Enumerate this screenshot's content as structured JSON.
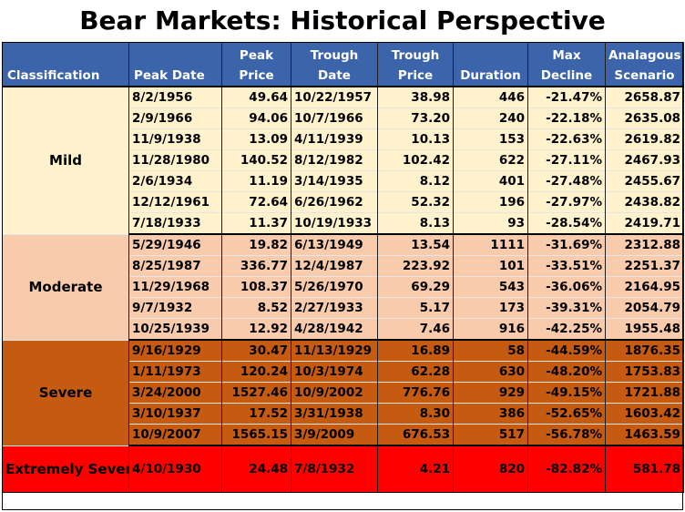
{
  "title": "Bear Markets:  Historical Perspective",
  "columns": [
    "Classification",
    "Peak Date",
    "Peak Price",
    "Trough Date",
    "Trough Price",
    "Duration",
    "Max Decline",
    "Analagous Scenario"
  ],
  "column_lines": [
    [
      "Classification"
    ],
    [
      "Peak Date"
    ],
    [
      "Peak",
      "Price"
    ],
    [
      "Trough",
      "Date"
    ],
    [
      "Trough",
      "Price"
    ],
    [
      "Duration"
    ],
    [
      "Max",
      "Decline"
    ],
    [
      "Analagous",
      "Scenario"
    ]
  ],
  "colors": {
    "header": "#3b64aa",
    "Mild": "#fff2cc",
    "Moderate": "#f8cbad",
    "Severe": "#c55a11",
    "Extremely Severe": "#ff0000"
  },
  "groups": [
    {
      "classification": "Mild",
      "style": "mild",
      "rows": [
        {
          "peak_date": "8/2/1956",
          "peak_price": "49.64",
          "trough_date": "10/22/1957",
          "trough_price": "38.98",
          "duration": "446",
          "max_decline": "-21.47%",
          "scenario": "2658.87"
        },
        {
          "peak_date": "2/9/1966",
          "peak_price": "94.06",
          "trough_date": "10/7/1966",
          "trough_price": "73.20",
          "duration": "240",
          "max_decline": "-22.18%",
          "scenario": "2635.08"
        },
        {
          "peak_date": "11/9/1938",
          "peak_price": "13.09",
          "trough_date": "4/11/1939",
          "trough_price": "10.13",
          "duration": "153",
          "max_decline": "-22.63%",
          "scenario": "2619.82"
        },
        {
          "peak_date": "11/28/1980",
          "peak_price": "140.52",
          "trough_date": "8/12/1982",
          "trough_price": "102.42",
          "duration": "622",
          "max_decline": "-27.11%",
          "scenario": "2467.93"
        },
        {
          "peak_date": "2/6/1934",
          "peak_price": "11.19",
          "trough_date": "3/14/1935",
          "trough_price": "8.12",
          "duration": "401",
          "max_decline": "-27.48%",
          "scenario": "2455.67"
        },
        {
          "peak_date": "12/12/1961",
          "peak_price": "72.64",
          "trough_date": "6/26/1962",
          "trough_price": "52.32",
          "duration": "196",
          "max_decline": "-27.97%",
          "scenario": "2438.82"
        },
        {
          "peak_date": "7/18/1933",
          "peak_price": "11.37",
          "trough_date": "10/19/1933",
          "trough_price": "8.13",
          "duration": "93",
          "max_decline": "-28.54%",
          "scenario": "2419.71"
        }
      ]
    },
    {
      "classification": "Moderate",
      "style": "moderate",
      "rows": [
        {
          "peak_date": "5/29/1946",
          "peak_price": "19.82",
          "trough_date": "6/13/1949",
          "trough_price": "13.54",
          "duration": "1111",
          "max_decline": "-31.69%",
          "scenario": "2312.88"
        },
        {
          "peak_date": "8/25/1987",
          "peak_price": "336.77",
          "trough_date": "12/4/1987",
          "trough_price": "223.92",
          "duration": "101",
          "max_decline": "-33.51%",
          "scenario": "2251.37"
        },
        {
          "peak_date": "11/29/1968",
          "peak_price": "108.37",
          "trough_date": "5/26/1970",
          "trough_price": "69.29",
          "duration": "543",
          "max_decline": "-36.06%",
          "scenario": "2164.95"
        },
        {
          "peak_date": "9/7/1932",
          "peak_price": "8.52",
          "trough_date": "2/27/1933",
          "trough_price": "5.17",
          "duration": "173",
          "max_decline": "-39.31%",
          "scenario": "2054.79"
        },
        {
          "peak_date": "10/25/1939",
          "peak_price": "12.92",
          "trough_date": "4/28/1942",
          "trough_price": "7.46",
          "duration": "916",
          "max_decline": "-42.25%",
          "scenario": "1955.48"
        }
      ]
    },
    {
      "classification": "Severe",
      "style": "severe",
      "rows": [
        {
          "peak_date": "9/16/1929",
          "peak_price": "30.47",
          "trough_date": "11/13/1929",
          "trough_price": "16.89",
          "duration": "58",
          "max_decline": "-44.59%",
          "scenario": "1876.35"
        },
        {
          "peak_date": "1/11/1973",
          "peak_price": "120.24",
          "trough_date": "10/3/1974",
          "trough_price": "62.28",
          "duration": "630",
          "max_decline": "-48.20%",
          "scenario": "1753.83"
        },
        {
          "peak_date": "3/24/2000",
          "peak_price": "1527.46",
          "trough_date": "10/9/2002",
          "trough_price": "776.76",
          "duration": "929",
          "max_decline": "-49.15%",
          "scenario": "1721.88"
        },
        {
          "peak_date": "3/10/1937",
          "peak_price": "17.52",
          "trough_date": "3/31/1938",
          "trough_price": "8.30",
          "duration": "386",
          "max_decline": "-52.65%",
          "scenario": "1603.42"
        },
        {
          "peak_date": "10/9/2007",
          "peak_price": "1565.15",
          "trough_date": "3/9/2009",
          "trough_price": "676.53",
          "duration": "517",
          "max_decline": "-56.78%",
          "scenario": "1463.59"
        }
      ]
    },
    {
      "classification": "Extremely Severe",
      "style": "extreme",
      "rows": [
        {
          "peak_date": "4/10/1930",
          "peak_price": "24.48",
          "trough_date": "7/8/1932",
          "trough_price": "4.21",
          "duration": "820",
          "max_decline": "-82.82%",
          "scenario": "581.78"
        }
      ]
    }
  ]
}
